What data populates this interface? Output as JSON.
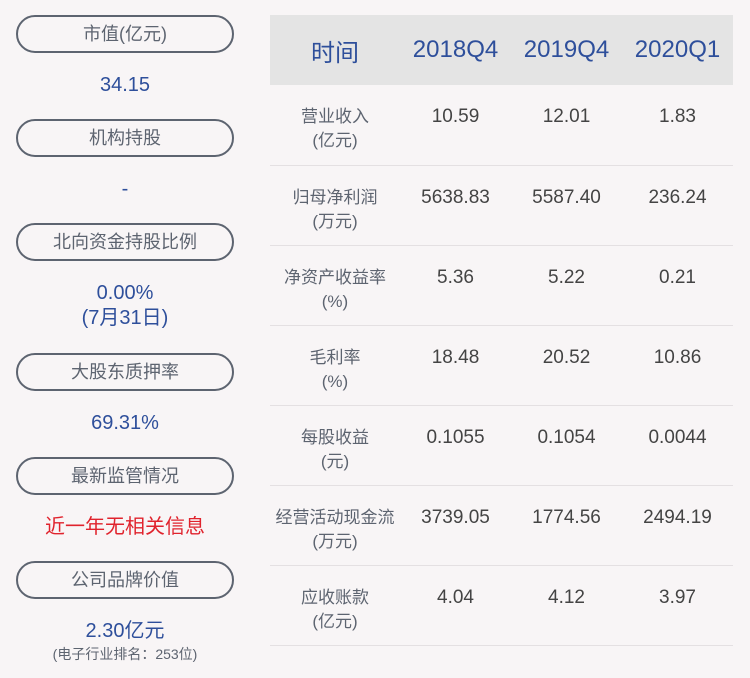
{
  "left": {
    "items": [
      {
        "label": "市值(亿元)",
        "value": "34.15"
      },
      {
        "label": "机构持股",
        "value": "-"
      },
      {
        "label": "北向资金持股比例",
        "value": "0.00%",
        "value2": "(7月31日)"
      },
      {
        "label": "大股东质押率",
        "value": "69.31%"
      },
      {
        "label": "最新监管情况",
        "value": "近一年无相关信息"
      },
      {
        "label": "公司品牌价值",
        "value": "2.30亿元",
        "note": "(电子行业排名：253位)"
      }
    ]
  },
  "table": {
    "headers": [
      "时间",
      "2018Q4",
      "2019Q4",
      "2020Q1"
    ],
    "rows": [
      {
        "label": "营业收入",
        "unit": "(亿元)",
        "values": [
          "10.59",
          "12.01",
          "1.83"
        ]
      },
      {
        "label": "归母净利润",
        "unit": "(万元)",
        "values": [
          "5638.83",
          "5587.40",
          "236.24"
        ]
      },
      {
        "label": "净资产收益率",
        "unit": "(%)",
        "values": [
          "5.36",
          "5.22",
          "0.21"
        ]
      },
      {
        "label": "毛利率",
        "unit": "(%)",
        "values": [
          "18.48",
          "20.52",
          "10.86"
        ]
      },
      {
        "label": "每股收益",
        "unit": "(元)",
        "values": [
          "0.1055",
          "0.1054",
          "0.0044"
        ]
      },
      {
        "label": "经营活动现金流",
        "unit": "(万元)",
        "values": [
          "3739.05",
          "1774.56",
          "2494.19"
        ]
      },
      {
        "label": "应收账款",
        "unit": "(亿元)",
        "values": [
          "4.04",
          "4.12",
          "3.97"
        ]
      }
    ]
  },
  "colors": {
    "accent": "#2e4f9b",
    "alert": "#e0232d",
    "header_bg": "#e4e4e4",
    "background": "#f8f5f6"
  }
}
